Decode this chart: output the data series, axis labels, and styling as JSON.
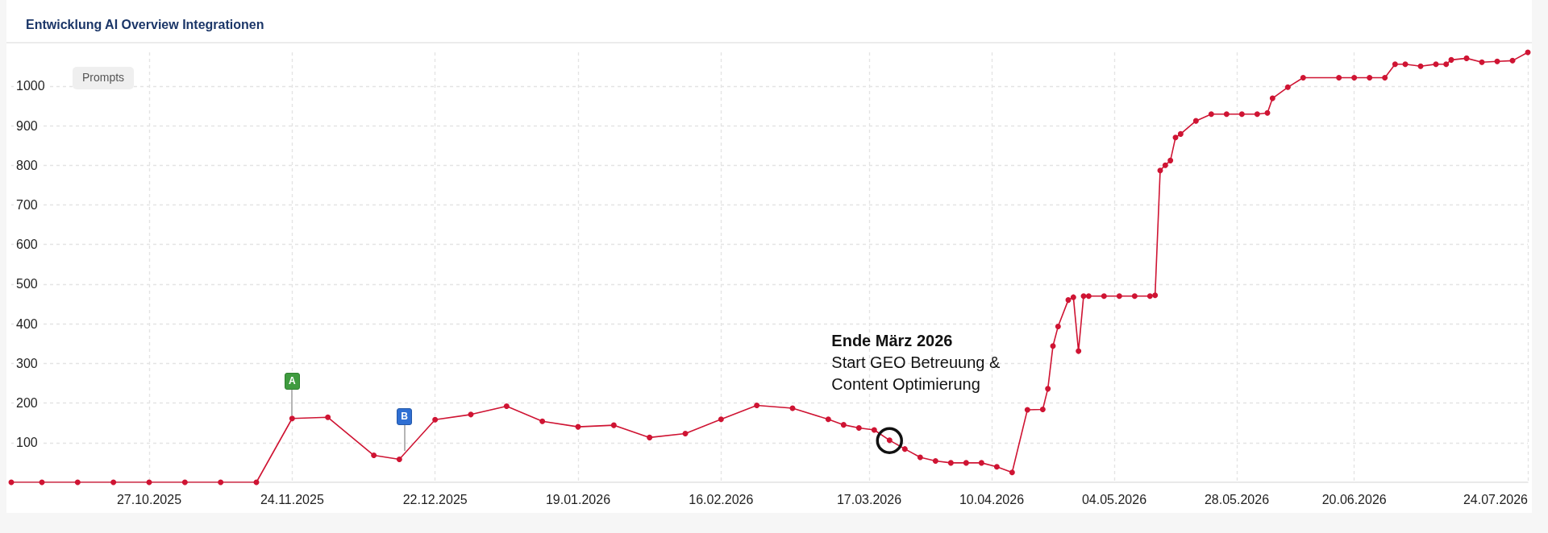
{
  "chart_data": {
    "type": "line",
    "title": "Entwicklung AI Overview Integrationen",
    "x": [
      "2025-09-30",
      "2025-10-06",
      "2025-10-13",
      "2025-10-20",
      "2025-10-27",
      "2025-11-03",
      "2025-11-10",
      "2025-11-17",
      "2025-11-24",
      "2025-12-01",
      "2025-12-10",
      "2025-12-15",
      "2025-12-22",
      "2025-12-29",
      "2026-01-05",
      "2026-01-12",
      "2026-01-19",
      "2026-01-26",
      "2026-02-02",
      "2026-02-09",
      "2026-02-16",
      "2026-02-23",
      "2026-03-02",
      "2026-03-09",
      "2026-03-12",
      "2026-03-15",
      "2026-03-18",
      "2026-03-21",
      "2026-03-24",
      "2026-03-27",
      "2026-03-30",
      "2026-04-02",
      "2026-04-05",
      "2026-04-08",
      "2026-04-11",
      "2026-04-14",
      "2026-04-17",
      "2026-04-20",
      "2026-04-21",
      "2026-04-22",
      "2026-04-23",
      "2026-04-25",
      "2026-04-26",
      "2026-04-27",
      "2026-04-28",
      "2026-04-29",
      "2026-05-02",
      "2026-05-05",
      "2026-05-08",
      "2026-05-11",
      "2026-05-12",
      "2026-05-13",
      "2026-05-14",
      "2026-05-15",
      "2026-05-16",
      "2026-05-17",
      "2026-05-20",
      "2026-05-23",
      "2026-05-26",
      "2026-05-29",
      "2026-06-01",
      "2026-06-03",
      "2026-06-04",
      "2026-06-07",
      "2026-06-10",
      "2026-06-17",
      "2026-06-20",
      "2026-06-23",
      "2026-06-26",
      "2026-06-28",
      "2026-06-30",
      "2026-07-03",
      "2026-07-06",
      "2026-07-08",
      "2026-07-09",
      "2026-07-12",
      "2026-07-15",
      "2026-07-18",
      "2026-07-21",
      "2026-07-24"
    ],
    "values": [
      0,
      0,
      0,
      0,
      0,
      0,
      0,
      0,
      161,
      164,
      68,
      58,
      158,
      171,
      192,
      154,
      140,
      144,
      113,
      123,
      159,
      194,
      187,
      159,
      145,
      137,
      132,
      106,
      84,
      63,
      54,
      49,
      49,
      49,
      39,
      25,
      183,
      184,
      236,
      344,
      393,
      460,
      467,
      331,
      470,
      470,
      470,
      470,
      470,
      470,
      472,
      787,
      800,
      812,
      870,
      879,
      912,
      929,
      929,
      929,
      929,
      932,
      969,
      997,
      1021,
      1021,
      1021,
      1021,
      1021,
      1055,
      1055,
      1050,
      1055,
      1055,
      1066,
      1070,
      1060,
      1062,
      1064,
      1085
    ],
    "color": "#cf1433",
    "xlim": [
      "2025-09-30",
      "2026-07-24"
    ],
    "xticks": [
      {
        "value": "2025-10-27",
        "label": "27.10.2025"
      },
      {
        "value": "2025-11-24",
        "label": "24.11.2025"
      },
      {
        "value": "2025-12-22",
        "label": "22.12.2025"
      },
      {
        "value": "2026-01-19",
        "label": "19.01.2026"
      },
      {
        "value": "2026-02-16",
        "label": "16.02.2026"
      },
      {
        "value": "2026-03-17",
        "label": "17.03.2026"
      },
      {
        "value": "2026-04-10",
        "label": "10.04.2026"
      },
      {
        "value": "2026-05-04",
        "label": "04.05.2026"
      },
      {
        "value": "2026-05-28",
        "label": "28.05.2026"
      },
      {
        "value": "2026-06-20",
        "label": "20.06.2026"
      },
      {
        "value": "2026-07-24",
        "label": "24.07.2026"
      }
    ],
    "ylim": [
      0,
      1085
    ],
    "yticks": [
      100,
      200,
      300,
      400,
      500,
      600,
      700,
      800,
      900,
      1000
    ],
    "grid": true,
    "marker": "circle",
    "annotations": [
      "Prompts",
      {
        "text": "A",
        "x": "2025-11-24",
        "y": 254
      },
      {
        "text": "B",
        "x": "2025-12-16",
        "y": 166
      },
      {
        "text": "Ende März 2026\nStart GEO Betreuung & Content Optimierung",
        "x": "2026-03-21",
        "y": 106
      }
    ]
  }
}
